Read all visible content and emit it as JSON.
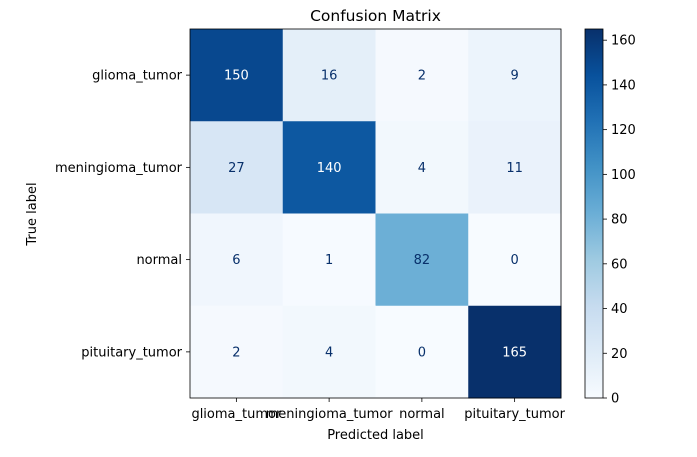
{
  "chart_data": {
    "type": "heatmap",
    "title": "Confusion Matrix",
    "xlabel": "Predicted label",
    "ylabel": "True label",
    "x_categories": [
      "glioma_tumor",
      "meningioma_tumor",
      "normal",
      "pituitary_tumor"
    ],
    "y_categories": [
      "glioma_tumor",
      "meningioma_tumor",
      "normal",
      "pituitary_tumor"
    ],
    "values": [
      [
        150,
        16,
        2,
        9
      ],
      [
        27,
        140,
        4,
        11
      ],
      [
        6,
        1,
        82,
        0
      ],
      [
        2,
        4,
        0,
        165
      ]
    ],
    "colormap": "Blues",
    "color_range": [
      0,
      165
    ],
    "colorbar_ticks": [
      "0",
      "20",
      "40",
      "60",
      "80",
      "100",
      "120",
      "140",
      "160"
    ]
  }
}
